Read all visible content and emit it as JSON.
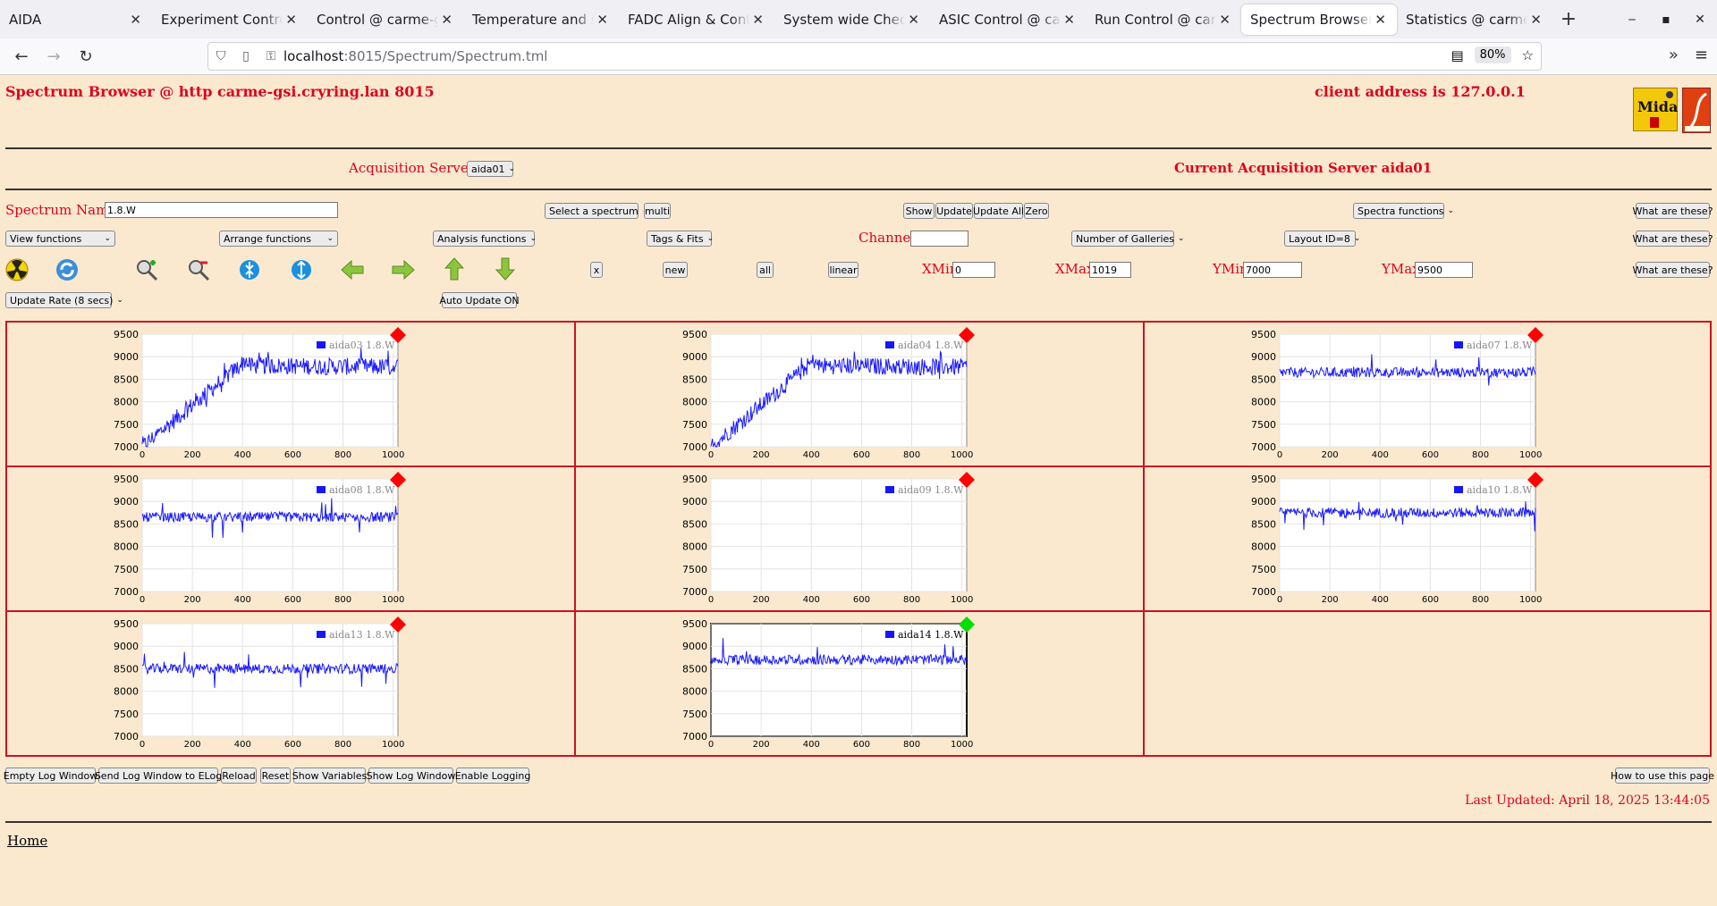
{
  "browser": {
    "tabs": [
      {
        "label": "AIDA",
        "active": false
      },
      {
        "label": "Experiment Control @ carme-gsi",
        "active": false
      },
      {
        "label": "Control @ carme-gsi",
        "active": false
      },
      {
        "label": "Temperature and status",
        "active": false
      },
      {
        "label": "FADC Align & Control",
        "active": false
      },
      {
        "label": "System wide Checks @",
        "active": false
      },
      {
        "label": "ASIC Control @ carme",
        "active": false
      },
      {
        "label": "Run Control @ carme",
        "active": false
      },
      {
        "label": "Spectrum Browser @ carme",
        "active": true
      },
      {
        "label": "Statistics @ carme-gsi",
        "active": false
      }
    ],
    "url_host": "localhost",
    "url_path": ":8015/Spectrum/Spectrum.tml",
    "zoom": "80%"
  },
  "header": {
    "title": "Spectrum Browser @ http carme-gsi.cryring.lan 8015",
    "client": "client address is 127.0.0.1",
    "logo_text": "Midas"
  },
  "acq": {
    "label": "Acquisition Servers",
    "server_select": "aida01",
    "current": "Current Acquisition Server aida01"
  },
  "row1": {
    "spectrum_name_label": "Spectrum Name:",
    "spectrum_name_value": "1.8.W",
    "select_spectrum": "Select a spectrum",
    "multi": "multi",
    "show": "Show",
    "update": "Update",
    "update_all": "Update All",
    "zero": "Zero",
    "spectra_functions": "Spectra functions",
    "what": "What are these?"
  },
  "row2": {
    "view_functions": "View functions",
    "arrange_functions": "Arrange functions",
    "analysis_functions": "Analysis functions",
    "tags_fits": "Tags & Fits",
    "channel_label": "Channel:",
    "channel_value": "",
    "galleries": "Number of Galleries",
    "layout": "Layout ID=8",
    "what": "What are these?"
  },
  "row3": {
    "x": "x",
    "new": "new",
    "all": "all",
    "linear": "linear",
    "xmin_label": "XMin",
    "xmin": "0",
    "xmax_label": "XMax",
    "xmax": "1019",
    "ymin_label": "YMin",
    "ymin": "7000",
    "ymax_label": "YMax",
    "ymax": "9500",
    "what": "What are these?"
  },
  "row4": {
    "update_rate": "Update Rate (8 secs)",
    "auto_update": "Auto Update ON"
  },
  "footer": {
    "buttons": [
      "Empty Log Window",
      "Send Log Window to ELog",
      "Reload",
      "Reset",
      "Show Variables",
      "Show Log Window",
      "Enable Logging"
    ],
    "how_to": "How to use this page",
    "last_updated": "Last Updated: April 18, 2025 13:44:05",
    "home": "Home"
  },
  "colors": {
    "accent_red": "#e0001a",
    "line_blue": "#1a1aff",
    "marker_red": "#ff0000",
    "marker_green": "#00dd00"
  },
  "chart_data": [
    {
      "type": "line",
      "legend": "aida03 1.8.W",
      "marker": "red",
      "shape": "ramp",
      "xlim": [
        0,
        1019
      ],
      "ylim": [
        7000,
        9500
      ],
      "xticks": [
        0,
        200,
        400,
        600,
        800,
        1000
      ],
      "yticks": [
        7000,
        7500,
        8000,
        8500,
        9000,
        9500
      ]
    },
    {
      "type": "line",
      "legend": "aida04 1.8.W",
      "marker": "red",
      "shape": "ramp",
      "xlim": [
        0,
        1019
      ],
      "ylim": [
        7000,
        9500
      ],
      "xticks": [
        0,
        200,
        400,
        600,
        800,
        1000
      ],
      "yticks": [
        7000,
        7500,
        8000,
        8500,
        9000,
        9500
      ]
    },
    {
      "type": "line",
      "legend": "aida07 1.8.W",
      "marker": "red",
      "shape": "flat",
      "level": 8650,
      "xlim": [
        0,
        1019
      ],
      "ylim": [
        7000,
        9500
      ],
      "xticks": [
        0,
        200,
        400,
        600,
        800,
        1000
      ],
      "yticks": [
        7000,
        7500,
        8000,
        8500,
        9000,
        9500
      ]
    },
    {
      "type": "line",
      "legend": "aida08 1.8.W",
      "marker": "red",
      "shape": "flat",
      "level": 8650,
      "xlim": [
        0,
        1019
      ],
      "ylim": [
        7000,
        9500
      ],
      "xticks": [
        0,
        200,
        400,
        600,
        800,
        1000
      ],
      "yticks": [
        7000,
        7500,
        8000,
        8500,
        9000,
        9500
      ]
    },
    {
      "type": "line",
      "legend": "aida09 1.8.W",
      "marker": "red",
      "shape": "none",
      "xlim": [
        0,
        1019
      ],
      "ylim": [
        7000,
        9500
      ],
      "xticks": [
        0,
        200,
        400,
        600,
        800,
        1000
      ],
      "yticks": [
        7000,
        7500,
        8000,
        8500,
        9000,
        9500
      ]
    },
    {
      "type": "line",
      "legend": "aida10 1.8.W",
      "marker": "red",
      "shape": "flat",
      "level": 8750,
      "xlim": [
        0,
        1019
      ],
      "ylim": [
        7000,
        9500
      ],
      "xticks": [
        0,
        200,
        400,
        600,
        800,
        1000
      ],
      "yticks": [
        7000,
        7500,
        8000,
        8500,
        9000,
        9500
      ]
    },
    {
      "type": "line",
      "legend": "aida13 1.8.W",
      "marker": "red",
      "shape": "flat",
      "level": 8500,
      "xlim": [
        0,
        1019
      ],
      "ylim": [
        7000,
        9500
      ],
      "xticks": [
        0,
        200,
        400,
        600,
        800,
        1000
      ],
      "yticks": [
        7000,
        7500,
        8000,
        8500,
        9000,
        9500
      ]
    },
    {
      "type": "line",
      "legend": "aida14 1.8.W",
      "marker": "green",
      "shape": "flat",
      "level": 8700,
      "selected": true,
      "xlim": [
        0,
        1019
      ],
      "ylim": [
        7000,
        9500
      ],
      "xticks": [
        0,
        200,
        400,
        600,
        800,
        1000
      ],
      "yticks": [
        7000,
        7500,
        8000,
        8500,
        9000,
        9500
      ]
    }
  ]
}
